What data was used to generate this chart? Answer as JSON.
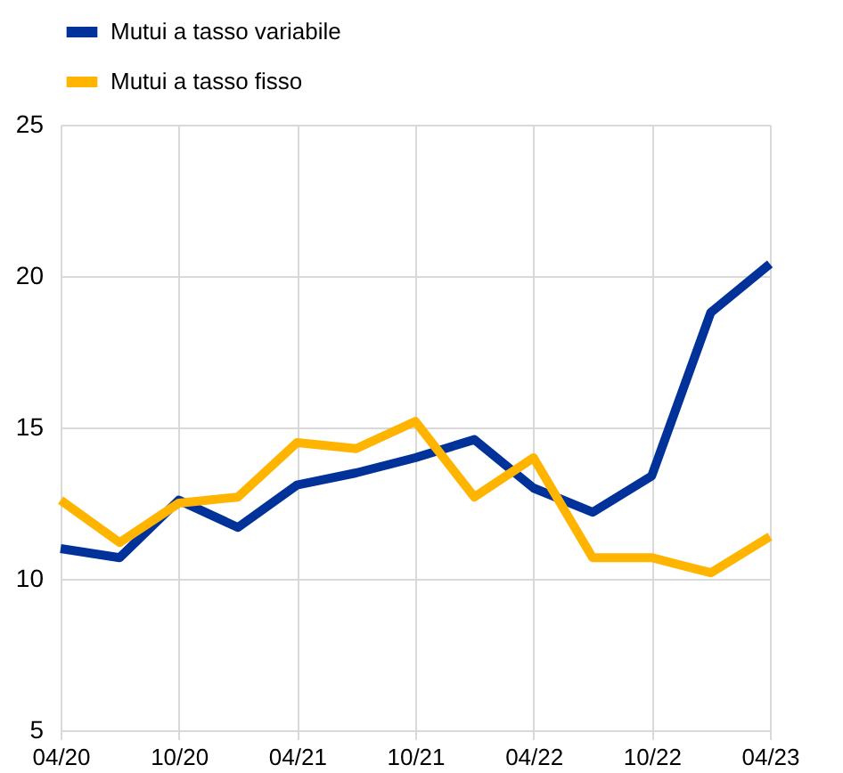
{
  "chart_data": {
    "type": "line",
    "categories": [
      "04/20",
      null,
      "10/20",
      null,
      "04/21",
      null,
      "10/21",
      null,
      "04/22",
      null,
      "10/22",
      null,
      "04/23"
    ],
    "series": [
      {
        "name": "Mutui a tasso variabile",
        "color": "#003299",
        "values": [
          11.0,
          10.7,
          12.6,
          11.7,
          13.1,
          13.5,
          14.0,
          14.6,
          13.0,
          12.2,
          13.4,
          18.8,
          20.4
        ]
      },
      {
        "name": "Mutui a tasso fisso",
        "color": "#ffb400",
        "values": [
          12.6,
          11.2,
          12.5,
          12.7,
          14.5,
          14.3,
          15.2,
          12.7,
          14.0,
          10.7,
          10.7,
          10.2,
          11.4
        ]
      }
    ],
    "ylim": [
      5,
      25
    ],
    "yticks": [
      5,
      10,
      15,
      20,
      25
    ],
    "grid": true,
    "legend": "top left",
    "line_style": "solid"
  }
}
